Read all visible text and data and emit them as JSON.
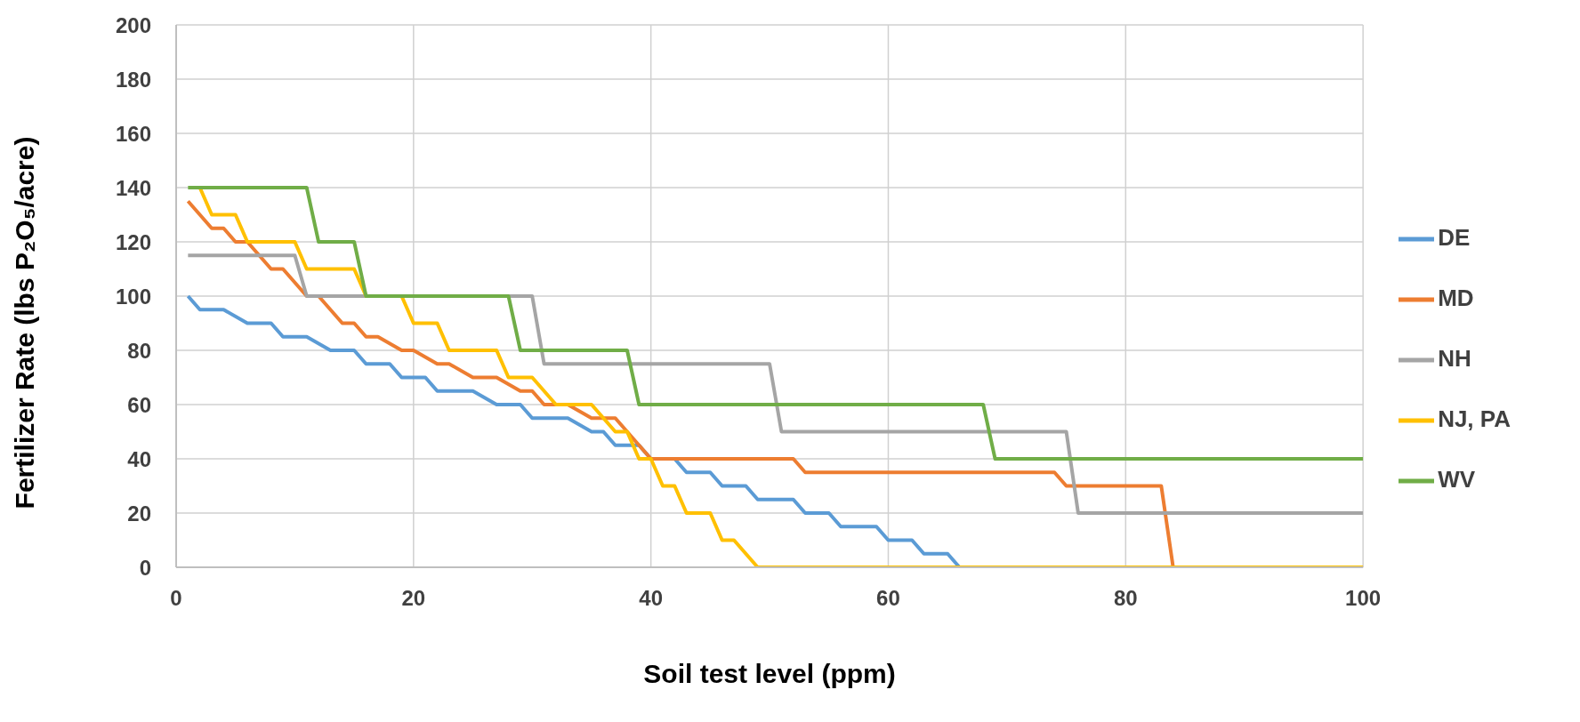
{
  "chart_data": {
    "type": "line",
    "xlabel": "Soil test level (ppm)",
    "ylabel": "Fertilizer Rate (lbs P₂O₅/acre)",
    "xlim": [
      0,
      100
    ],
    "xticks": [
      0,
      20,
      40,
      60,
      80,
      100
    ],
    "ylim": [
      0,
      200
    ],
    "yticks": [
      0,
      20,
      40,
      60,
      80,
      100,
      120,
      140,
      160,
      180,
      200
    ],
    "grid": true,
    "legend": "right",
    "marker": "none",
    "line_style": "solid",
    "series": [
      {
        "name": "DE",
        "color": "#5b9bd5",
        "x": [
          1,
          2,
          4,
          6,
          8,
          9,
          11,
          13,
          15,
          16,
          18,
          19,
          21,
          22,
          25,
          27,
          29,
          30,
          33,
          35,
          36,
          37,
          39,
          40,
          42,
          43,
          45,
          46,
          48,
          49,
          52,
          53,
          55,
          56,
          59,
          60,
          62,
          63,
          65,
          66
        ],
        "values": [
          100,
          95,
          95,
          90,
          90,
          85,
          85,
          80,
          80,
          75,
          75,
          70,
          70,
          65,
          65,
          60,
          60,
          55,
          55,
          50,
          50,
          45,
          45,
          40,
          40,
          35,
          35,
          30,
          30,
          25,
          25,
          20,
          20,
          15,
          15,
          10,
          10,
          5,
          5,
          0
        ]
      },
      {
        "name": "MD",
        "color": "#ed7d31",
        "x": [
          1,
          2,
          3,
          4,
          5,
          6,
          7,
          8,
          9,
          10,
          11,
          12,
          13,
          14,
          15,
          16,
          17,
          19,
          20,
          22,
          23,
          25,
          27,
          29,
          30,
          31,
          33,
          35,
          37,
          38,
          39,
          40,
          52,
          53,
          74,
          75,
          83,
          84,
          100
        ],
        "values": [
          135,
          130,
          125,
          125,
          120,
          120,
          115,
          110,
          110,
          105,
          100,
          100,
          95,
          90,
          90,
          85,
          85,
          80,
          80,
          75,
          75,
          70,
          70,
          65,
          65,
          60,
          60,
          55,
          55,
          50,
          45,
          40,
          40,
          35,
          35,
          30,
          30,
          0,
          0
        ]
      },
      {
        "name": "NH",
        "color": "#a5a5a5",
        "x": [
          1,
          10,
          11,
          30,
          31,
          50,
          51,
          75,
          76,
          100
        ],
        "values": [
          115,
          115,
          100,
          100,
          75,
          75,
          50,
          50,
          20,
          20
        ]
      },
      {
        "name": "NJ, PA",
        "color": "#ffc000",
        "x": [
          2,
          3,
          5,
          6,
          10,
          11,
          15,
          16,
          19,
          20,
          22,
          23,
          27,
          28,
          30,
          32,
          35,
          37,
          38,
          39,
          40,
          41,
          42,
          43,
          45,
          46,
          47,
          49,
          100
        ],
        "values": [
          140,
          130,
          130,
          120,
          120,
          110,
          110,
          100,
          100,
          90,
          90,
          80,
          80,
          70,
          70,
          60,
          60,
          50,
          50,
          40,
          40,
          30,
          30,
          20,
          20,
          10,
          10,
          0,
          0
        ]
      },
      {
        "name": "WV",
        "color": "#70ad47",
        "x": [
          1,
          11,
          12,
          15,
          16,
          28,
          29,
          38,
          39,
          68,
          69,
          100
        ],
        "values": [
          140,
          140,
          120,
          120,
          100,
          100,
          80,
          80,
          60,
          60,
          40,
          40
        ]
      }
    ]
  }
}
